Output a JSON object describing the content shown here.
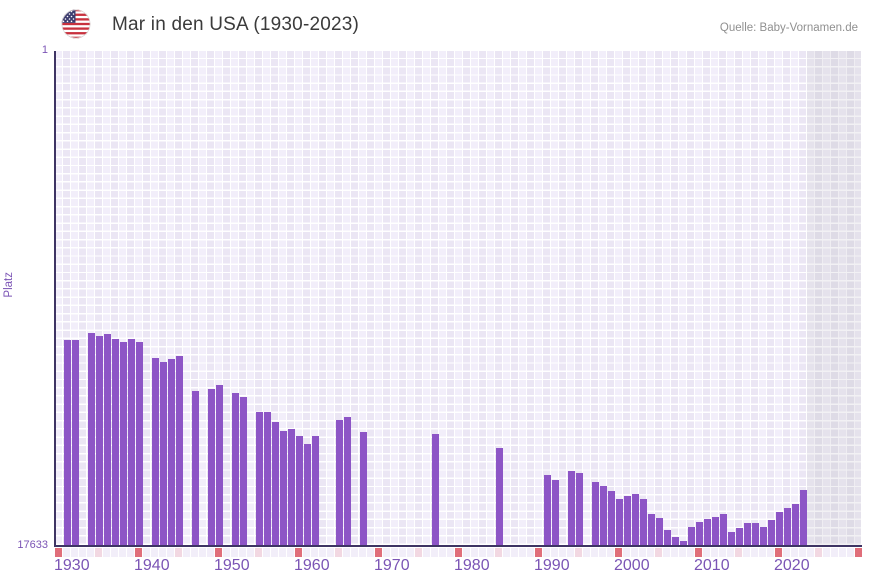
{
  "header": {
    "title": "Mar in den USA (1930-2023)",
    "source": "Quelle: Baby-Vornamen.de"
  },
  "chart_data": {
    "type": "bar",
    "title": "Mar in den USA (1930-2023)",
    "xlabel": "",
    "ylabel": "Platz",
    "y_axis": {
      "top_tick": "1",
      "bottom_tick": "17633",
      "min": 1,
      "max": 17633,
      "inverted": true
    },
    "x_axis": {
      "start_year": 1930,
      "grid_end_year": 2030,
      "data_end_year": 2023,
      "decade_labels": [
        "1930",
        "1940",
        "1950",
        "1960",
        "1970",
        "1980",
        "1990",
        "2000",
        "2010",
        "2020"
      ]
    },
    "no_data_region": {
      "from": 2024,
      "to": 2030
    },
    "colors": {
      "bar": "#8d55c6",
      "axis": "#3e3464",
      "axis_label": "#7b54b5",
      "tick_decade": "#e06e7a",
      "tick_half_decade": "#f2d8e2",
      "tick_default": "#f2eef9",
      "plot_background": "#f0ecf8",
      "future_region": "#e2dfe9"
    },
    "bars": [
      {
        "year": 1931,
        "rank": 10316
      },
      {
        "year": 1932,
        "rank": 10330
      },
      {
        "year": 1934,
        "rank": 10055
      },
      {
        "year": 1935,
        "rank": 10162
      },
      {
        "year": 1936,
        "rank": 10100
      },
      {
        "year": 1937,
        "rank": 10280
      },
      {
        "year": 1938,
        "rank": 10387
      },
      {
        "year": 1939,
        "rank": 10280
      },
      {
        "year": 1940,
        "rank": 10387
      },
      {
        "year": 1942,
        "rank": 10958
      },
      {
        "year": 1943,
        "rank": 11101
      },
      {
        "year": 1944,
        "rank": 10994
      },
      {
        "year": 1945,
        "rank": 10887
      },
      {
        "year": 1947,
        "rank": 12136
      },
      {
        "year": 1949,
        "rank": 12054
      },
      {
        "year": 1950,
        "rank": 11922
      },
      {
        "year": 1952,
        "rank": 12218
      },
      {
        "year": 1953,
        "rank": 12340
      },
      {
        "year": 1955,
        "rank": 12897
      },
      {
        "year": 1956,
        "rank": 12897
      },
      {
        "year": 1957,
        "rank": 13232
      },
      {
        "year": 1958,
        "rank": 13560
      },
      {
        "year": 1959,
        "rank": 13493
      },
      {
        "year": 1960,
        "rank": 13742
      },
      {
        "year": 1961,
        "rank": 14017
      },
      {
        "year": 1962,
        "rank": 13742
      },
      {
        "year": 1965,
        "rank": 13172
      },
      {
        "year": 1966,
        "rank": 13076
      },
      {
        "year": 1968,
        "rank": 13589
      },
      {
        "year": 1977,
        "rank": 13671
      },
      {
        "year": 1985,
        "rank": 14182
      },
      {
        "year": 1991,
        "rank": 15134
      },
      {
        "year": 1992,
        "rank": 15313
      },
      {
        "year": 1994,
        "rank": 14991
      },
      {
        "year": 1995,
        "rank": 15074
      },
      {
        "year": 1997,
        "rank": 15373
      },
      {
        "year": 1998,
        "rank": 15516
      },
      {
        "year": 1999,
        "rank": 15706
      },
      {
        "year": 2000,
        "rank": 16002
      },
      {
        "year": 2001,
        "rank": 15873
      },
      {
        "year": 2002,
        "rank": 15829
      },
      {
        "year": 2003,
        "rank": 16002
      },
      {
        "year": 2004,
        "rank": 16526
      },
      {
        "year": 2005,
        "rank": 16680
      },
      {
        "year": 2006,
        "rank": 17097
      },
      {
        "year": 2007,
        "rank": 17359
      },
      {
        "year": 2008,
        "rank": 17479
      },
      {
        "year": 2009,
        "rank": 16979
      },
      {
        "year": 2010,
        "rank": 16812
      },
      {
        "year": 2011,
        "rank": 16705
      },
      {
        "year": 2012,
        "rank": 16623
      },
      {
        "year": 2013,
        "rank": 16526
      },
      {
        "year": 2014,
        "rank": 17168
      },
      {
        "year": 2015,
        "rank": 17026
      },
      {
        "year": 2016,
        "rank": 16847
      },
      {
        "year": 2017,
        "rank": 16858
      },
      {
        "year": 2018,
        "rank": 17001
      },
      {
        "year": 2019,
        "rank": 16740
      },
      {
        "year": 2020,
        "rank": 16455
      },
      {
        "year": 2021,
        "rank": 16312
      },
      {
        "year": 2022,
        "rank": 16169
      },
      {
        "year": 2023,
        "rank": 15670
      }
    ]
  }
}
